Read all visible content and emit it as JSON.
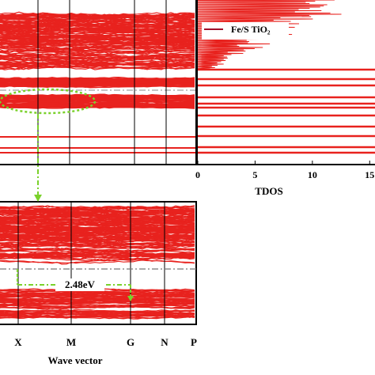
{
  "chart_data": [
    {
      "type": "band",
      "xlabel": "Wave vector",
      "kpoints": [
        "X",
        "M",
        "G",
        "N",
        "P"
      ],
      "annotation": "2.48eV"
    },
    {
      "type": "dos",
      "xlabel": "TDOS",
      "legend": "Fe/S TiO₂",
      "color": "#e8221e",
      "xlim": [
        0,
        16.5
      ],
      "xticks": [
        0,
        5,
        10,
        15
      ]
    }
  ]
}
